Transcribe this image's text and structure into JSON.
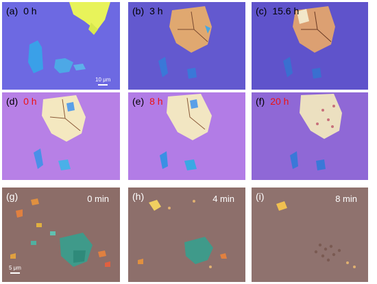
{
  "panels": [
    {
      "letter": "(a)",
      "time": "0 h",
      "time_color": "black"
    },
    {
      "letter": "(b)",
      "time": "3 h",
      "time_color": "black"
    },
    {
      "letter": "(c)",
      "time": "15.6 h",
      "time_color": "black"
    },
    {
      "letter": "(d)",
      "time": "0 h",
      "time_color": "red"
    },
    {
      "letter": "(e)",
      "time": "8 h",
      "time_color": "red"
    },
    {
      "letter": "(f)",
      "time": "20 h",
      "time_color": "red"
    },
    {
      "letter": "(g)",
      "time": "0 min",
      "time_color": "black"
    },
    {
      "letter": "(h)",
      "time": "4 min",
      "time_color": "black"
    },
    {
      "letter": "(i)",
      "time": "8 min",
      "time_color": "black"
    }
  ],
  "scale_bars": {
    "top": "10 μm",
    "bottom": "5 μm"
  },
  "colors": {
    "row1_bg": "#6a64d8",
    "row2_bg": "#b983e6",
    "row3_bg": "#8e6f6b",
    "red_time": "#ee1111"
  }
}
